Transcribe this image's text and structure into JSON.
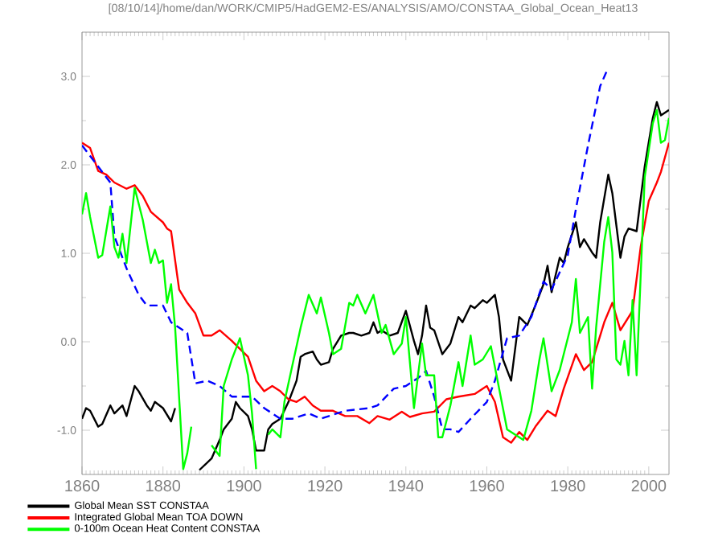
{
  "chart_data": {
    "type": "line",
    "title": "[08/10/14]/home/dan/WORK/CMIP5/HadGEM2-ES/ANALYSIS/AMO/CONSTAA_Global_Ocean_Heat13",
    "xlim": [
      1860,
      2005
    ],
    "ylim": [
      -1.5,
      3.5
    ],
    "xticks": [
      1860,
      1880,
      1900,
      1920,
      1940,
      1960,
      1980,
      2000
    ],
    "yticks": [
      {
        "value": -1,
        "label": "-1.0"
      },
      {
        "value": 0,
        "label": "0.0"
      },
      {
        "value": 1,
        "label": "1.0"
      },
      {
        "value": 2,
        "label": "2.0"
      },
      {
        "value": 3,
        "label": "3.0"
      }
    ],
    "grid": false,
    "legend": "bottom",
    "marker": "none",
    "series": [
      {
        "name": "Global Mean SST CONSTAA",
        "color": "#000000",
        "line_style": "solid",
        "x": [
          1860,
          1861,
          1862,
          1864,
          1865,
          1867,
          1868,
          1870,
          1871,
          1873,
          1874,
          1876,
          1877,
          1878,
          1880,
          1882,
          1883,
          1884,
          1888,
          1889,
          1892,
          1894,
          1895,
          1897,
          1898,
          1899,
          1901,
          1902,
          1903,
          1905,
          1906,
          1907,
          1909,
          1911,
          1913,
          1914,
          1915,
          1917,
          1918,
          1919,
          1921,
          1922,
          1924,
          1926,
          1927,
          1929,
          1931,
          1932,
          1933,
          1934,
          1936,
          1938,
          1940,
          1942,
          1943,
          1944,
          1945,
          1946,
          1947,
          1949,
          1951,
          1953,
          1954,
          1956,
          1957,
          1959,
          1960,
          1962,
          1963,
          1964,
          1966,
          1968,
          1970,
          1972,
          1974,
          1975,
          1976,
          1978,
          1979,
          1980,
          1982,
          1983,
          1984,
          1986,
          1987,
          1988,
          1990,
          1991,
          1993,
          1994,
          1995,
          1997,
          1999,
          2001,
          2002,
          2003,
          2005
        ],
        "values": [
          -0.87,
          -0.75,
          -0.78,
          -0.96,
          -0.93,
          -0.72,
          -0.81,
          -0.72,
          -0.84,
          -0.5,
          -0.56,
          -0.72,
          -0.78,
          -0.68,
          -0.75,
          -0.9,
          -0.75,
          null,
          null,
          -1.45,
          -1.32,
          -1.11,
          -0.99,
          -0.87,
          -0.68,
          -0.75,
          -0.84,
          -0.99,
          -1.23,
          -1.23,
          -0.99,
          -0.93,
          -0.87,
          -0.68,
          -0.44,
          -0.17,
          -0.14,
          -0.11,
          -0.2,
          -0.26,
          -0.23,
          -0.08,
          0.07,
          0.1,
          0.1,
          0.07,
          0.1,
          0.22,
          0.1,
          0.13,
          0.07,
          0.1,
          0.35,
          0.01,
          -0.14,
          0.07,
          0.41,
          0.16,
          0.13,
          -0.14,
          -0.02,
          0.28,
          0.22,
          0.41,
          0.38,
          0.47,
          0.44,
          0.53,
          0.28,
          -0.2,
          -0.44,
          0.28,
          0.19,
          0.41,
          0.65,
          0.86,
          0.56,
          0.95,
          0.89,
          1.07,
          1.35,
          1.07,
          1.16,
          1.01,
          0.95,
          1.35,
          1.89,
          1.68,
          0.95,
          1.19,
          1.28,
          1.25,
          1.98,
          2.53,
          2.71,
          2.56,
          2.62
        ]
      },
      {
        "name": "Integrated Global Mean TOA DOWN",
        "color": "#ff0000",
        "line_style": "solid",
        "x": [
          1860,
          1862,
          1864,
          1866,
          1868,
          1871,
          1873,
          1875,
          1877,
          1880,
          1881,
          1882,
          1884,
          1886,
          1888,
          1890,
          1892,
          1894,
          1897,
          1899,
          1901,
          1903,
          1905,
          1907,
          1909,
          1911,
          1913,
          1915,
          1917,
          1919,
          1922,
          1925,
          1928,
          1931,
          1933,
          1936,
          1939,
          1941,
          1944,
          1947,
          1950,
          1953,
          1957,
          1960,
          1962,
          1964,
          1966,
          1968,
          1970,
          1972,
          1975,
          1977,
          1979,
          1982,
          1984,
          1986,
          1989,
          1991,
          1993,
          1996,
          1998,
          2000,
          2002,
          2003,
          2005
        ],
        "values": [
          2.25,
          2.19,
          1.93,
          1.89,
          1.8,
          1.73,
          1.77,
          1.65,
          1.47,
          1.35,
          1.28,
          1.25,
          0.59,
          0.44,
          0.32,
          0.07,
          0.07,
          0.13,
          0.01,
          -0.08,
          -0.17,
          -0.44,
          -0.56,
          -0.5,
          -0.56,
          -0.65,
          -0.68,
          -0.62,
          -0.72,
          -0.78,
          -0.78,
          -0.84,
          -0.84,
          -0.92,
          -0.84,
          -0.88,
          -0.79,
          -0.85,
          -0.81,
          -0.79,
          -0.65,
          -0.62,
          -0.59,
          -0.5,
          -0.68,
          -1.08,
          -1.14,
          -1.02,
          -1.11,
          -0.96,
          -0.78,
          -0.84,
          -0.53,
          -0.14,
          -0.32,
          -0.23,
          0.22,
          0.44,
          0.13,
          0.35,
          1.07,
          1.59,
          1.8,
          1.92,
          2.25
        ]
      },
      {
        "color": "#0000ff",
        "line_style": "dashed",
        "x": [
          1860,
          1863,
          1867,
          1868,
          1871,
          1874,
          1876,
          1880,
          1882,
          1886,
          1888,
          1891,
          1894,
          1897,
          1902,
          1905,
          1909,
          1912,
          1916,
          1919,
          1925,
          1931,
          1933,
          1937,
          1940,
          1943,
          1945,
          1947,
          1949,
          1951,
          1953,
          1956,
          1960,
          1962,
          1965,
          1968,
          1971,
          1974,
          1976,
          1980,
          1982,
          1985,
          1988,
          1990
        ],
        "values": [
          2.22,
          2.04,
          1.8,
          1.19,
          0.83,
          0.53,
          0.41,
          0.41,
          0.22,
          0.1,
          -0.47,
          -0.44,
          -0.5,
          -0.62,
          -0.62,
          -0.75,
          -0.87,
          -0.87,
          -0.81,
          -0.87,
          -0.78,
          -0.75,
          -0.72,
          -0.53,
          -0.5,
          -0.41,
          -0.33,
          -0.62,
          -0.99,
          -0.99,
          -1.02,
          -0.87,
          -0.68,
          -0.44,
          0.04,
          0.07,
          0.28,
          0.68,
          0.59,
          0.98,
          1.5,
          2.22,
          2.89,
          3.1
        ]
      },
      {
        "name": "0-100m Ocean Heat Content CONSTAA",
        "color": "#00ff00",
        "line_style": "solid",
        "x": [
          1860,
          1861,
          1862,
          1864,
          1865,
          1867,
          1868,
          1869,
          1870,
          1871,
          1873,
          1875,
          1877,
          1878,
          1879,
          1880,
          1881,
          1882,
          1883,
          1885,
          1886,
          1887,
          1889,
          1892,
          1894,
          1895,
          1897,
          1898,
          1899,
          1901,
          1902,
          1903,
          1905,
          1906,
          1907,
          1909,
          1910,
          1912,
          1914,
          1916,
          1918,
          1919,
          1921,
          1922,
          1924,
          1926,
          1927,
          1928,
          1930,
          1932,
          1934,
          1935,
          1937,
          1939,
          1940,
          1942,
          1943,
          1944,
          1945,
          1947,
          1948,
          1949,
          1951,
          1953,
          1954,
          1956,
          1957,
          1959,
          1961,
          1965,
          1969,
          1971,
          1973,
          1974,
          1976,
          1978,
          1981,
          1982,
          1983,
          1985,
          1986,
          1987,
          1989,
          1990,
          1991,
          1992,
          1993,
          1994,
          1995,
          1996,
          1997,
          1999,
          2001,
          2002,
          2003,
          2004,
          2005
        ],
        "values": [
          1.44,
          1.68,
          1.41,
          0.95,
          0.98,
          1.53,
          1.07,
          0.95,
          1.22,
          0.89,
          1.74,
          1.38,
          0.89,
          1.04,
          0.89,
          0.92,
          0.44,
          0.65,
          0.16,
          -1.44,
          -1.26,
          -0.96,
          null,
          -1.17,
          -1.29,
          -0.5,
          -0.2,
          -0.08,
          0.04,
          -0.38,
          -0.81,
          -1.44,
          null,
          -1.05,
          -0.99,
          -1.08,
          -0.68,
          -0.26,
          0.16,
          0.53,
          0.32,
          0.5,
          0.1,
          -0.14,
          -0.08,
          0.44,
          0.41,
          0.53,
          0.32,
          0.53,
          0.1,
          0.19,
          -0.14,
          -0.02,
          0.28,
          -0.75,
          -0.38,
          -0.02,
          -0.38,
          -0.38,
          -1.08,
          -1.08,
          -0.72,
          -0.23,
          -0.5,
          0.07,
          -0.26,
          -0.2,
          -0.05,
          -0.99,
          -1.11,
          -0.78,
          -0.2,
          0.04,
          -0.56,
          -0.32,
          0.22,
          0.71,
          0.1,
          0.28,
          -0.53,
          0.16,
          1.13,
          1.41,
          1.01,
          -0.2,
          -0.26,
          0.01,
          -0.38,
          0.47,
          -0.38,
          1.86,
          2.47,
          2.62,
          2.25,
          2.28,
          2.53
        ]
      }
    ]
  }
}
